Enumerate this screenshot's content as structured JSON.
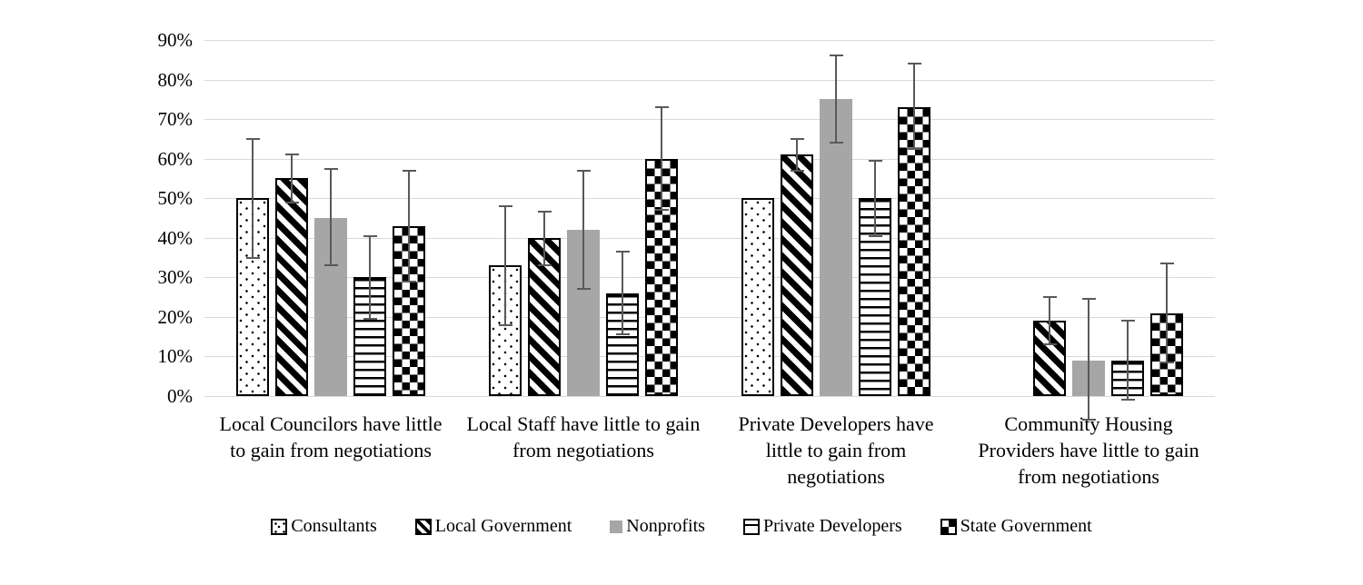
{
  "chart_data": {
    "type": "bar",
    "title": "",
    "categories": [
      "Local Councilors have little to gain from negotiations",
      "Local Staff have little to gain from negotiations",
      "Private Developers have little to gain from negotiations",
      "Community Housing Providers have little to gain from negotiations"
    ],
    "series": [
      {
        "name": "Consultants",
        "pattern": "dots",
        "values": [
          50,
          33,
          50,
          null
        ],
        "error_low": [
          35,
          18,
          null,
          null
        ],
        "error_high": [
          65,
          48,
          null,
          null
        ]
      },
      {
        "name": "Local Government",
        "pattern": "diagonal",
        "values": [
          55,
          40,
          61,
          19
        ],
        "error_low": [
          49,
          33,
          57,
          13
        ],
        "error_high": [
          61,
          46.5,
          65,
          25
        ]
      },
      {
        "name": "Nonprofits",
        "pattern": "solid",
        "values": [
          45,
          42,
          75,
          9
        ],
        "error_low": [
          33,
          27,
          64,
          -6
        ],
        "error_high": [
          57.5,
          57,
          86,
          24.5
        ]
      },
      {
        "name": "Private Developers",
        "pattern": "hlines",
        "values": [
          30,
          26,
          50,
          9
        ],
        "error_low": [
          19.5,
          15.5,
          40.5,
          -1
        ],
        "error_high": [
          40.5,
          36.5,
          59.5,
          19
        ]
      },
      {
        "name": "State Government",
        "pattern": "checker",
        "values": [
          43,
          60,
          73,
          21
        ],
        "error_low": [
          29,
          47,
          62.5,
          8.5
        ],
        "error_high": [
          57,
          73,
          84,
          33.5
        ]
      }
    ],
    "y_ticks": [
      0,
      10,
      20,
      30,
      40,
      50,
      60,
      70,
      80,
      90
    ],
    "y_tick_suffix": "%",
    "ylim": [
      0,
      90
    ],
    "grid": true,
    "legend_position": "bottom",
    "xlabel": "",
    "ylabel": ""
  },
  "colors": {
    "background": "#ffffff",
    "gridline": "#d9d9d9",
    "error_bar": "#595959",
    "bar_gray": "#a6a6a6",
    "pattern_black": "#000000"
  }
}
